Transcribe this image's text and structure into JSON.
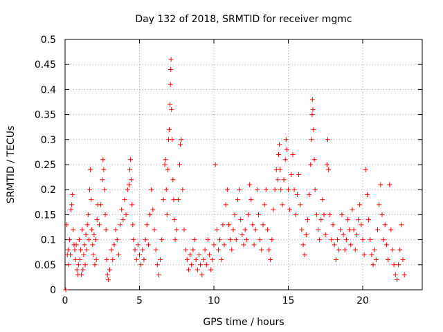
{
  "chart_data": {
    "type": "scatter",
    "title": "Day 132 of 2018, SRMTID for receiver mgmc",
    "xlabel": "GPS time / hours",
    "ylabel": "SRMTID / TECUs",
    "xlim": [
      0,
      24
    ],
    "ylim": [
      0,
      0.5
    ],
    "xticks": [
      0,
      5,
      10,
      15,
      20
    ],
    "yticks": [
      0,
      0.05,
      0.1,
      0.15,
      0.2,
      0.25,
      0.3,
      0.35,
      0.4,
      0.45,
      0.5
    ],
    "xtick_labels": [
      "0",
      "5",
      "10",
      "15",
      "20"
    ],
    "ytick_labels": [
      "0",
      "0.05",
      "0.1",
      "0.15",
      "0.2",
      "0.25",
      "0.3",
      "0.35",
      "0.4",
      "0.45",
      "0.5"
    ],
    "grid": true,
    "marker": "+",
    "color": "#ff0000",
    "series": [
      {
        "values_xy": [
          [
            0.05,
            0.0
          ],
          [
            0.1,
            0.13
          ],
          [
            0.15,
            0.07
          ],
          [
            0.2,
            0.08
          ],
          [
            0.25,
            0.05
          ],
          [
            0.3,
            0.1
          ],
          [
            0.35,
            0.07
          ],
          [
            0.4,
            0.16
          ],
          [
            0.45,
            0.17
          ],
          [
            0.5,
            0.19
          ],
          [
            0.55,
            0.12
          ],
          [
            0.6,
            0.09
          ],
          [
            0.65,
            0.08
          ],
          [
            0.7,
            0.06
          ],
          [
            0.75,
            0.09
          ],
          [
            0.8,
            0.04
          ],
          [
            0.85,
            0.03
          ],
          [
            0.9,
            0.05
          ],
          [
            0.95,
            0.1
          ],
          [
            1.0,
            0.06
          ],
          [
            1.05,
            0.08
          ],
          [
            1.1,
            0.03
          ],
          [
            1.15,
            0.12
          ],
          [
            1.2,
            0.04
          ],
          [
            1.25,
            0.07
          ],
          [
            1.3,
            0.09
          ],
          [
            1.35,
            0.05
          ],
          [
            1.4,
            0.11
          ],
          [
            1.45,
            0.08
          ],
          [
            1.5,
            0.13
          ],
          [
            1.55,
            0.15
          ],
          [
            1.6,
            0.1
          ],
          [
            1.65,
            0.2
          ],
          [
            1.7,
            0.24
          ],
          [
            1.75,
            0.18
          ],
          [
            1.8,
            0.12
          ],
          [
            1.85,
            0.09
          ],
          [
            1.9,
            0.07
          ],
          [
            1.95,
            0.11
          ],
          [
            2.0,
            0.05
          ],
          [
            2.05,
            0.1
          ],
          [
            2.1,
            0.06
          ],
          [
            2.15,
            0.14
          ],
          [
            2.2,
            0.17
          ],
          [
            2.3,
            0.13
          ],
          [
            2.4,
            0.17
          ],
          [
            2.5,
            0.22
          ],
          [
            2.55,
            0.26
          ],
          [
            2.6,
            0.24
          ],
          [
            2.65,
            0.2
          ],
          [
            2.7,
            0.15
          ],
          [
            2.75,
            0.12
          ],
          [
            2.8,
            0.06
          ],
          [
            2.85,
            0.03
          ],
          [
            2.9,
            0.02
          ],
          [
            3.0,
            0.04
          ],
          [
            3.1,
            0.08
          ],
          [
            3.2,
            0.06
          ],
          [
            3.3,
            0.09
          ],
          [
            3.4,
            0.12
          ],
          [
            3.5,
            0.1
          ],
          [
            3.6,
            0.07
          ],
          [
            3.7,
            0.13
          ],
          [
            3.8,
            0.16
          ],
          [
            3.9,
            0.14
          ],
          [
            4.0,
            0.18
          ],
          [
            4.1,
            0.15
          ],
          [
            4.2,
            0.2
          ],
          [
            4.3,
            0.21
          ],
          [
            4.35,
            0.24
          ],
          [
            4.4,
            0.26
          ],
          [
            4.45,
            0.22
          ],
          [
            4.5,
            0.17
          ],
          [
            4.55,
            0.13
          ],
          [
            4.6,
            0.1
          ],
          [
            4.7,
            0.08
          ],
          [
            4.8,
            0.06
          ],
          [
            4.9,
            0.09
          ],
          [
            5.0,
            0.07
          ],
          [
            5.1,
            0.05
          ],
          [
            5.2,
            0.08
          ],
          [
            5.3,
            0.06
          ],
          [
            5.4,
            0.1
          ],
          [
            5.5,
            0.13
          ],
          [
            5.6,
            0.09
          ],
          [
            5.7,
            0.15
          ],
          [
            5.8,
            0.2
          ],
          [
            5.9,
            0.16
          ],
          [
            6.0,
            0.12
          ],
          [
            6.1,
            0.08
          ],
          [
            6.2,
            0.05
          ],
          [
            6.3,
            0.03
          ],
          [
            6.4,
            0.06
          ],
          [
            6.5,
            0.1
          ],
          [
            6.6,
            0.18
          ],
          [
            6.7,
            0.25
          ],
          [
            6.75,
            0.26
          ],
          [
            6.8,
            0.2
          ],
          [
            6.85,
            0.15
          ],
          [
            6.9,
            0.24
          ],
          [
            6.95,
            0.3
          ],
          [
            7.0,
            0.32
          ],
          [
            7.05,
            0.37
          ],
          [
            7.08,
            0.41
          ],
          [
            7.1,
            0.44
          ],
          [
            7.12,
            0.46
          ],
          [
            7.15,
            0.36
          ],
          [
            7.2,
            0.3
          ],
          [
            7.25,
            0.22
          ],
          [
            7.3,
            0.18
          ],
          [
            7.35,
            0.14
          ],
          [
            7.4,
            0.1
          ],
          [
            7.5,
            0.12
          ],
          [
            7.6,
            0.18
          ],
          [
            7.7,
            0.25
          ],
          [
            7.75,
            0.29
          ],
          [
            7.8,
            0.3
          ],
          [
            7.9,
            0.2
          ],
          [
            8.0,
            0.12
          ],
          [
            8.1,
            0.08
          ],
          [
            8.2,
            0.06
          ],
          [
            8.3,
            0.04
          ],
          [
            8.4,
            0.07
          ],
          [
            8.5,
            0.05
          ],
          [
            8.6,
            0.08
          ],
          [
            8.7,
            0.1
          ],
          [
            8.8,
            0.06
          ],
          [
            8.9,
            0.04
          ],
          [
            9.0,
            0.07
          ],
          [
            9.1,
            0.05
          ],
          [
            9.2,
            0.03
          ],
          [
            9.3,
            0.06
          ],
          [
            9.4,
            0.08
          ],
          [
            9.5,
            0.05
          ],
          [
            9.6,
            0.1
          ],
          [
            9.7,
            0.07
          ],
          [
            9.8,
            0.04
          ],
          [
            9.9,
            0.06
          ],
          [
            10.0,
            0.09
          ],
          [
            10.1,
            0.25
          ],
          [
            10.2,
            0.12
          ],
          [
            10.3,
            0.08
          ],
          [
            10.4,
            0.1
          ],
          [
            10.5,
            0.06
          ],
          [
            10.6,
            0.13
          ],
          [
            10.7,
            0.09
          ],
          [
            10.8,
            0.17
          ],
          [
            10.9,
            0.2
          ],
          [
            11.0,
            0.13
          ],
          [
            11.1,
            0.1
          ],
          [
            11.2,
            0.08
          ],
          [
            11.3,
            0.12
          ],
          [
            11.4,
            0.15
          ],
          [
            11.5,
            0.1
          ],
          [
            11.6,
            0.18
          ],
          [
            11.7,
            0.2
          ],
          [
            11.8,
            0.14
          ],
          [
            11.9,
            0.11
          ],
          [
            12.0,
            0.09
          ],
          [
            12.1,
            0.12
          ],
          [
            12.2,
            0.1
          ],
          [
            12.3,
            0.15
          ],
          [
            12.4,
            0.21
          ],
          [
            12.5,
            0.18
          ],
          [
            12.6,
            0.13
          ],
          [
            12.7,
            0.09
          ],
          [
            12.8,
            0.12
          ],
          [
            12.9,
            0.2
          ],
          [
            13.0,
            0.15
          ],
          [
            13.1,
            0.1
          ],
          [
            13.2,
            0.08
          ],
          [
            13.3,
            0.13
          ],
          [
            13.4,
            0.17
          ],
          [
            13.5,
            0.2
          ],
          [
            13.6,
            0.12
          ],
          [
            13.7,
            0.08
          ],
          [
            13.8,
            0.06
          ],
          [
            13.9,
            0.1
          ],
          [
            14.0,
            0.16
          ],
          [
            14.1,
            0.2
          ],
          [
            14.2,
            0.24
          ],
          [
            14.3,
            0.22
          ],
          [
            14.35,
            0.27
          ],
          [
            14.4,
            0.29
          ],
          [
            14.45,
            0.24
          ],
          [
            14.5,
            0.2
          ],
          [
            14.6,
            0.17
          ],
          [
            14.7,
            0.22
          ],
          [
            14.8,
            0.26
          ],
          [
            14.85,
            0.3
          ],
          [
            14.9,
            0.28
          ],
          [
            15.0,
            0.2
          ],
          [
            15.1,
            0.16
          ],
          [
            15.2,
            0.23
          ],
          [
            15.3,
            0.27
          ],
          [
            15.4,
            0.2
          ],
          [
            15.5,
            0.15
          ],
          [
            15.6,
            0.19
          ],
          [
            15.7,
            0.23
          ],
          [
            15.8,
            0.17
          ],
          [
            15.9,
            0.12
          ],
          [
            16.0,
            0.09
          ],
          [
            16.1,
            0.07
          ],
          [
            16.2,
            0.11
          ],
          [
            16.3,
            0.14
          ],
          [
            16.4,
            0.19
          ],
          [
            16.5,
            0.25
          ],
          [
            16.55,
            0.3
          ],
          [
            16.6,
            0.35
          ],
          [
            16.62,
            0.38
          ],
          [
            16.65,
            0.36
          ],
          [
            16.7,
            0.32
          ],
          [
            16.75,
            0.26
          ],
          [
            16.8,
            0.2
          ],
          [
            16.9,
            0.15
          ],
          [
            17.0,
            0.12
          ],
          [
            17.1,
            0.1
          ],
          [
            17.2,
            0.14
          ],
          [
            17.3,
            0.18
          ],
          [
            17.4,
            0.15
          ],
          [
            17.5,
            0.11
          ],
          [
            17.6,
            0.25
          ],
          [
            17.65,
            0.3
          ],
          [
            17.7,
            0.24
          ],
          [
            17.8,
            0.15
          ],
          [
            17.9,
            0.1
          ],
          [
            18.0,
            0.13
          ],
          [
            18.1,
            0.09
          ],
          [
            18.2,
            0.06
          ],
          [
            18.3,
            0.1
          ],
          [
            18.4,
            0.08
          ],
          [
            18.5,
            0.12
          ],
          [
            18.6,
            0.15
          ],
          [
            18.7,
            0.11
          ],
          [
            18.8,
            0.08
          ],
          [
            18.9,
            0.1
          ],
          [
            19.0,
            0.14
          ],
          [
            19.1,
            0.12
          ],
          [
            19.2,
            0.09
          ],
          [
            19.3,
            0.16
          ],
          [
            19.4,
            0.12
          ],
          [
            19.5,
            0.08
          ],
          [
            19.6,
            0.11
          ],
          [
            19.7,
            0.14
          ],
          [
            19.8,
            0.17
          ],
          [
            19.9,
            0.13
          ],
          [
            20.0,
            0.1
          ],
          [
            20.1,
            0.07
          ],
          [
            20.2,
            0.24
          ],
          [
            20.3,
            0.19
          ],
          [
            20.4,
            0.14
          ],
          [
            20.5,
            0.1
          ],
          [
            20.6,
            0.07
          ],
          [
            20.7,
            0.05
          ],
          [
            20.8,
            0.08
          ],
          [
            20.9,
            0.06
          ],
          [
            21.0,
            0.12
          ],
          [
            21.1,
            0.17
          ],
          [
            21.2,
            0.21
          ],
          [
            21.3,
            0.15
          ],
          [
            21.4,
            0.1
          ],
          [
            21.5,
            0.13
          ],
          [
            21.6,
            0.09
          ],
          [
            21.7,
            0.06
          ],
          [
            21.8,
            0.21
          ],
          [
            21.9,
            0.12
          ],
          [
            22.0,
            0.08
          ],
          [
            22.1,
            0.05
          ],
          [
            22.2,
            0.03
          ],
          [
            22.3,
            0.02
          ],
          [
            22.4,
            0.05
          ],
          [
            22.5,
            0.08
          ],
          [
            22.6,
            0.13
          ],
          [
            22.7,
            0.06
          ],
          [
            22.8,
            0.03
          ]
        ]
      }
    ]
  }
}
